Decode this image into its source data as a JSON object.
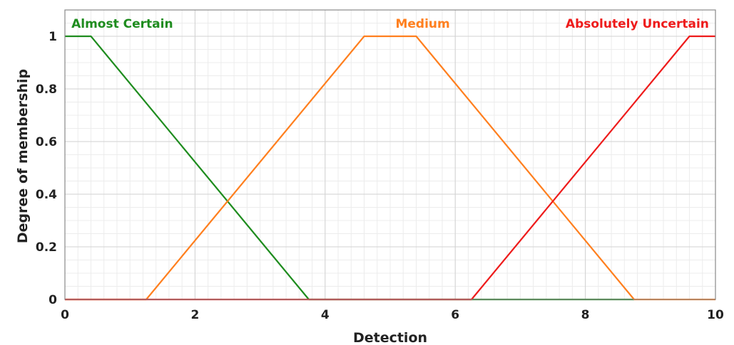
{
  "chart_data": {
    "type": "line",
    "xlabel": "Detection",
    "ylabel": "Degree of membership",
    "xlim": [
      0,
      10
    ],
    "ylim": [
      0,
      1.1
    ],
    "x_ticks": [
      0,
      2,
      4,
      6,
      8,
      10
    ],
    "y_ticks": [
      0,
      0.2,
      0.4,
      0.6,
      0.8,
      1
    ],
    "x_tick_labels": [
      "0",
      "2",
      "4",
      "6",
      "8",
      "10"
    ],
    "y_tick_labels": [
      "0",
      "0.2",
      "0.4",
      "0.6",
      "0.8",
      "1"
    ],
    "grid": true,
    "series": [
      {
        "name": "Almost Certain",
        "color": "#1e8c1e",
        "label_x": 0.1,
        "points": [
          [
            0,
            1
          ],
          [
            0.4,
            1
          ],
          [
            3.75,
            0
          ],
          [
            8.75,
            0
          ]
        ]
      },
      {
        "name": "Medium",
        "color": "#ff7f1e",
        "label_x": 5.5,
        "points": [
          [
            0,
            0
          ],
          [
            1.25,
            0
          ],
          [
            4.6,
            1
          ],
          [
            5.4,
            1
          ],
          [
            8.75,
            0
          ],
          [
            10,
            0
          ]
        ]
      },
      {
        "name": "Absolutely Uncertain",
        "color": "#ee1b1b",
        "label_x": 9.9,
        "points": [
          [
            0,
            0
          ],
          [
            6.25,
            0
          ],
          [
            9.6,
            1
          ],
          [
            10,
            1
          ]
        ]
      }
    ]
  }
}
